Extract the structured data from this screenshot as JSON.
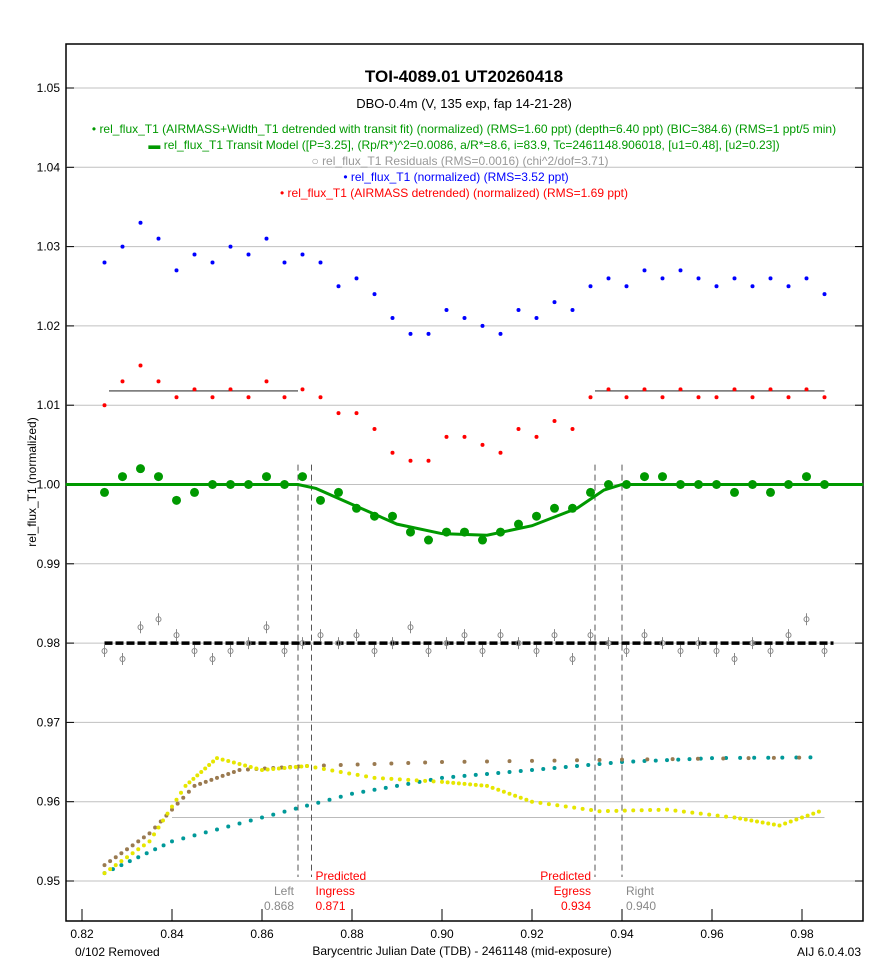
{
  "chart_data": {
    "type": "scatter",
    "title": "TOI-4089.01  UT20260418",
    "subtitle": "DBO-0.4m (V, 135 exp, fap 14-21-28)",
    "xlabel": "Barycentric Julian Date (TDB) - 2461148 (mid-exposure)",
    "ylabel": "rel_flux_T1 (normalized)",
    "xlim": [
      0.8164,
      0.9936
    ],
    "ylim": [
      0.945,
      1.0555
    ],
    "xticks": [
      "0.82",
      "0.84",
      "0.86",
      "0.88",
      "0.90",
      "0.92",
      "0.94",
      "0.96",
      "0.98"
    ],
    "yticks": [
      "0.95",
      "0.96",
      "0.97",
      "0.98",
      "0.99",
      "1.00",
      "1.01",
      "1.02",
      "1.03",
      "1.04",
      "1.05"
    ],
    "grid": true,
    "legend": [
      {
        "text": "rel_flux_T1 (AIRMASS+Width_T1 detrended with transit fit) (normalized) (RMS=1.60 ppt) (depth=6.40 ppt) (BIC=384.6) (RMS=1 ppt/5 min)",
        "color": "#009900",
        "symbol": "•"
      },
      {
        "text": "rel_flux_T1 Transit Model ([P=3.25], (Rp/R*)^2=0.0086, a/R*=8.6, i=83.9, Tc=2461148.906018, [u1=0.48], [u2=0.23])",
        "color": "#009900",
        "symbol": "▬"
      },
      {
        "text": "rel_flux_T1 Residuals (RMS=0.0016) (chi^2/dof=3.71)",
        "color": "#999999",
        "symbol": "○"
      },
      {
        "text": "rel_flux_T1 (normalized) (RMS=3.52 ppt)",
        "color": "#0000ff",
        "symbol": "•"
      },
      {
        "text": "rel_flux_T1 (AIRMASS detrended) (normalized) (RMS=1.69 ppt)",
        "color": "#ff0000",
        "symbol": "•"
      }
    ],
    "x_start": 0.825,
    "x_step": 0.004,
    "series": [
      {
        "name": "rel_flux_T1 (normalized)",
        "color": "#0000ff",
        "values": [
          1.028,
          1.03,
          1.033,
          1.031,
          1.027,
          1.029,
          1.028,
          1.03,
          1.029,
          1.031,
          1.028,
          1.029,
          1.028,
          1.025,
          1.026,
          1.024,
          1.021,
          1.019,
          1.019,
          1.022,
          1.021,
          1.02,
          1.019,
          1.022,
          1.021,
          1.023,
          1.022,
          1.025,
          1.026,
          1.025,
          1.027,
          1.026,
          1.027,
          1.026,
          1.025,
          1.026,
          1.025,
          1.026,
          1.025,
          1.026,
          1.024
        ]
      },
      {
        "name": "rel_flux_T1 (AIRMASS detrended)",
        "color": "#ff0000",
        "values": [
          1.01,
          1.013,
          1.015,
          1.013,
          1.011,
          1.012,
          1.011,
          1.012,
          1.011,
          1.013,
          1.011,
          1.012,
          1.011,
          1.009,
          1.009,
          1.007,
          1.004,
          1.003,
          1.003,
          1.006,
          1.006,
          1.005,
          1.004,
          1.007,
          1.006,
          1.008,
          1.007,
          1.011,
          1.012,
          1.011,
          1.012,
          1.011,
          1.012,
          1.011,
          1.011,
          1.012,
          1.011,
          1.012,
          1.011,
          1.012,
          1.011
        ]
      },
      {
        "name": "rel_flux_T1 (detrended with transit fit, binned)",
        "color": "#009900",
        "values": [
          0.999,
          1.001,
          1.002,
          1.001,
          0.998,
          0.999,
          1.0,
          1.0,
          1.0,
          1.001,
          1.0,
          1.001,
          0.998,
          0.999,
          0.997,
          0.996,
          0.996,
          0.994,
          0.993,
          0.994,
          0.994,
          0.993,
          0.994,
          0.995,
          0.996,
          0.997,
          0.997,
          0.999,
          1.0,
          1.0,
          1.001,
          1.001,
          1.0,
          1.0,
          1.0,
          0.999,
          1.0,
          0.999,
          1.0,
          1.001,
          1.0
        ]
      },
      {
        "name": "rel_flux_T1 Residuals",
        "color": "#888888",
        "values": [
          0.979,
          0.978,
          0.982,
          0.983,
          0.981,
          0.979,
          0.978,
          0.979,
          0.98,
          0.982,
          0.979,
          0.98,
          0.981,
          0.98,
          0.981,
          0.979,
          0.98,
          0.982,
          0.979,
          0.98,
          0.981,
          0.979,
          0.981,
          0.98,
          0.979,
          0.981,
          0.978,
          0.981,
          0.98,
          0.979,
          0.981,
          0.98,
          0.979,
          0.98,
          0.979,
          0.978,
          0.98,
          0.979,
          0.981,
          0.983,
          0.979
        ]
      }
    ],
    "model": {
      "name": "rel_flux_T1 Transit Model",
      "color": "#009900",
      "points": [
        [
          0.8164,
          1.0
        ],
        [
          0.868,
          1.0
        ],
        [
          0.872,
          0.9995
        ],
        [
          0.88,
          0.9975
        ],
        [
          0.89,
          0.995
        ],
        [
          0.9,
          0.9938
        ],
        [
          0.91,
          0.9936
        ],
        [
          0.92,
          0.9948
        ],
        [
          0.93,
          0.997
        ],
        [
          0.936,
          0.9993
        ],
        [
          0.94,
          1.0
        ],
        [
          0.9936,
          1.0
        ]
      ]
    },
    "aux_series": [
      {
        "name": "airmass",
        "color": "#009999",
        "points": [
          [
            0.825,
            0.951
          ],
          [
            0.84,
            0.955
          ],
          [
            0.86,
            0.958
          ],
          [
            0.88,
            0.961
          ],
          [
            0.9,
            0.963
          ],
          [
            0.92,
            0.964
          ],
          [
            0.94,
            0.965
          ],
          [
            0.96,
            0.9655
          ],
          [
            0.985,
            0.9656
          ]
        ]
      },
      {
        "name": "width",
        "color": "#9a7a50",
        "points": [
          [
            0.825,
            0.952
          ],
          [
            0.835,
            0.956
          ],
          [
            0.845,
            0.962
          ],
          [
            0.855,
            0.964
          ],
          [
            0.87,
            0.9645
          ],
          [
            0.9,
            0.965
          ],
          [
            0.94,
            0.9653
          ],
          [
            0.985,
            0.9656
          ]
        ]
      },
      {
        "name": "sky",
        "color": "#e6e600",
        "points": [
          [
            0.825,
            0.951
          ],
          [
            0.835,
            0.955
          ],
          [
            0.843,
            0.962
          ],
          [
            0.85,
            0.9655
          ],
          [
            0.86,
            0.964
          ],
          [
            0.87,
            0.9645
          ],
          [
            0.885,
            0.963
          ],
          [
            0.9,
            0.9625
          ],
          [
            0.91,
            0.962
          ],
          [
            0.92,
            0.96
          ],
          [
            0.935,
            0.9588
          ],
          [
            0.95,
            0.959
          ],
          [
            0.965,
            0.958
          ],
          [
            0.975,
            0.957
          ],
          [
            0.985,
            0.959
          ]
        ]
      }
    ],
    "pretransit_baseline": 1.0118,
    "residual_baseline": 0.98,
    "gray_baseline": 0.958,
    "markers": [
      {
        "x": 0.868,
        "label": "Left",
        "value": "0.868",
        "color": "#888888"
      },
      {
        "x": 0.871,
        "label": "Predicted Ingress",
        "value": "0.871",
        "color": "#ff0000"
      },
      {
        "x": 0.934,
        "label": "Predicted Egress",
        "value": "0.934",
        "color": "#ff0000"
      },
      {
        "x": 0.94,
        "label": "Right",
        "value": "0.940",
        "color": "#888888"
      }
    ]
  },
  "footer": {
    "removed": "0/102 Removed",
    "version": "AIJ 6.0.4.03"
  }
}
